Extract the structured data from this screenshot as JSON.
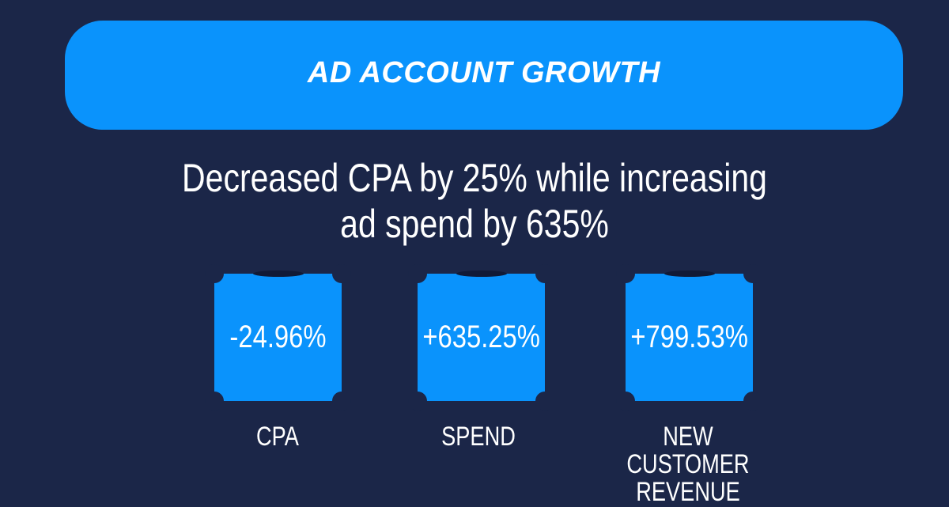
{
  "banner": {
    "title": "AD ACCOUNT GROWTH"
  },
  "headline": {
    "line1": "Decreased CPA by 25% while increasing",
    "line2": "ad spend by 635%"
  },
  "metrics": [
    {
      "value": "-24.96%",
      "label": "CPA",
      "label_line2": ""
    },
    {
      "value": "+635.25%",
      "label": "SPEND",
      "label_line2": ""
    },
    {
      "value": "+799.53%",
      "label": "NEW CUSTOMER",
      "label_line2": "REVENUE"
    }
  ],
  "colors": {
    "background": "#1b2648",
    "accent": "#0a93fc",
    "text": "#ffffff"
  }
}
